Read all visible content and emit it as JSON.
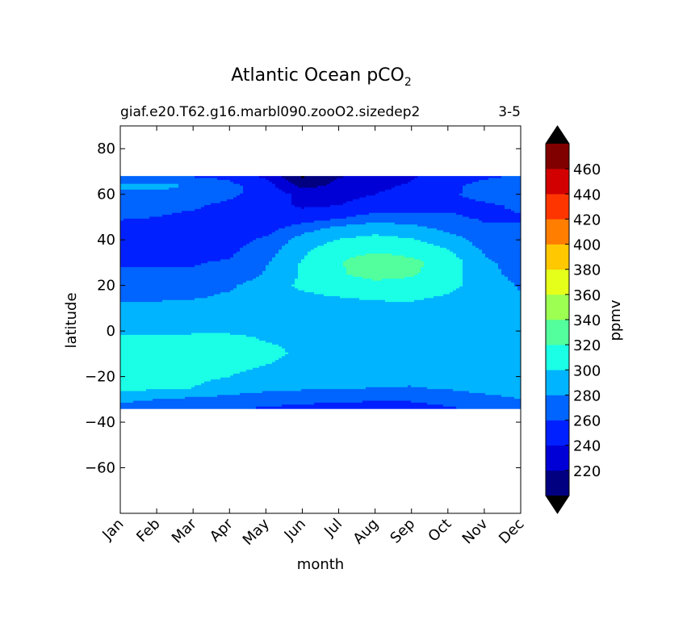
{
  "chart_data": {
    "type": "heatmap",
    "title_main": "Atlantic Ocean pCO",
    "title_sub": "2",
    "subtitle_left": "giaf.e20.T62.g16.marbl090.zooO2.sizedep2",
    "subtitle_right": "3-5",
    "xlabel": "month",
    "ylabel": "latitude",
    "colorbar_label": "ppmv",
    "x_ticks": [
      "Jan",
      "Feb",
      "Mar",
      "Apr",
      "May",
      "Jun",
      "Jul",
      "Aug",
      "Sep",
      "Oct",
      "Nov",
      "Dec"
    ],
    "y_ticks": [
      80,
      60,
      40,
      20,
      0,
      -20,
      -40,
      -60
    ],
    "y_tick_labels": [
      "80",
      "60",
      "40",
      "20",
      "0",
      "−20",
      "−40",
      "−60"
    ],
    "ylim": [
      -80,
      90
    ],
    "xlim": [
      1,
      12
    ],
    "data_lat_range": [
      -34,
      68
    ],
    "levels": [
      200,
      220,
      240,
      260,
      280,
      300,
      320,
      340,
      360,
      380,
      400,
      420,
      440,
      460,
      480
    ],
    "level_labels": [
      "220",
      "240",
      "260",
      "280",
      "300",
      "320",
      "340",
      "360",
      "380",
      "400",
      "420",
      "440",
      "460"
    ],
    "level_colors": [
      "#000080",
      "#0000d6",
      "#0020ff",
      "#0064ff",
      "#00b4ff",
      "#1affe6",
      "#52ff9c",
      "#9cff52",
      "#e6ff1a",
      "#ffc800",
      "#ff7e00",
      "#ff3500",
      "#d20000",
      "#800000"
    ],
    "extend_colors": {
      "under": "#000000",
      "over": "#000000"
    },
    "latitudes": [
      -34,
      -30,
      -25,
      -20,
      -15,
      -10,
      -5,
      0,
      5,
      10,
      15,
      20,
      25,
      30,
      35,
      40,
      45,
      50,
      55,
      60,
      64,
      68
    ],
    "months": [
      1,
      2,
      3,
      4,
      5,
      6,
      7,
      8,
      9,
      10,
      11,
      12
    ],
    "values": [
      [
        272,
        268,
        265,
        262,
        258,
        255,
        252,
        252,
        254,
        258,
        264,
        270
      ],
      [
        285,
        280,
        276,
        272,
        268,
        266,
        264,
        262,
        262,
        266,
        272,
        280
      ],
      [
        305,
        304,
        300,
        292,
        286,
        283,
        281,
        280,
        279,
        282,
        288,
        292
      ],
      [
        306,
        307,
        304,
        300,
        292,
        289,
        287,
        285,
        285,
        289,
        292,
        294
      ],
      [
        305,
        308,
        307,
        306,
        300,
        292,
        292,
        291,
        291,
        293,
        295,
        296
      ],
      [
        312,
        311,
        310,
        308,
        306,
        296,
        293,
        286,
        282,
        294,
        295,
        296
      ],
      [
        307,
        306,
        306,
        306,
        300,
        297,
        293,
        288,
        288,
        295,
        296,
        296
      ],
      [
        295,
        297,
        298,
        298,
        297,
        297,
        296,
        296,
        296,
        295,
        294,
        293
      ],
      [
        291,
        292,
        293,
        293,
        293,
        294,
        294,
        294,
        294,
        293,
        292,
        291
      ],
      [
        285,
        286,
        288,
        290,
        292,
        294,
        295,
        296,
        296,
        294,
        292,
        289
      ],
      [
        276,
        276,
        278,
        283,
        290,
        296,
        300,
        302,
        303,
        298,
        290,
        282
      ],
      [
        272,
        272,
        272,
        277,
        290,
        304,
        312,
        315,
        314,
        306,
        290,
        278
      ],
      [
        262,
        262,
        262,
        265,
        282,
        302,
        318,
        326,
        322,
        310,
        286,
        274
      ],
      [
        259,
        259,
        259,
        262,
        278,
        302,
        318,
        332,
        325,
        312,
        284,
        272
      ],
      [
        255,
        254,
        254,
        256,
        272,
        296,
        314,
        318,
        314,
        302,
        278,
        267
      ],
      [
        253,
        252,
        252,
        252,
        264,
        288,
        301,
        306,
        302,
        291,
        270,
        264
      ],
      [
        254,
        254,
        252,
        249,
        252,
        272,
        286,
        293,
        288,
        274,
        262,
        261
      ],
      [
        262,
        260,
        255,
        249,
        242,
        246,
        256,
        268,
        266,
        262,
        258,
        259
      ],
      [
        268,
        266,
        263,
        255,
        246,
        238,
        240,
        246,
        252,
        257,
        258,
        262
      ],
      [
        274,
        276,
        272,
        264,
        252,
        234,
        236,
        240,
        248,
        258,
        264,
        270
      ],
      [
        284,
        286,
        278,
        265,
        250,
        212,
        225,
        235,
        242,
        255,
        266,
        276
      ],
      [
        262,
        262,
        258,
        254,
        236,
        198,
        218,
        232,
        238,
        248,
        256,
        262
      ]
    ]
  }
}
